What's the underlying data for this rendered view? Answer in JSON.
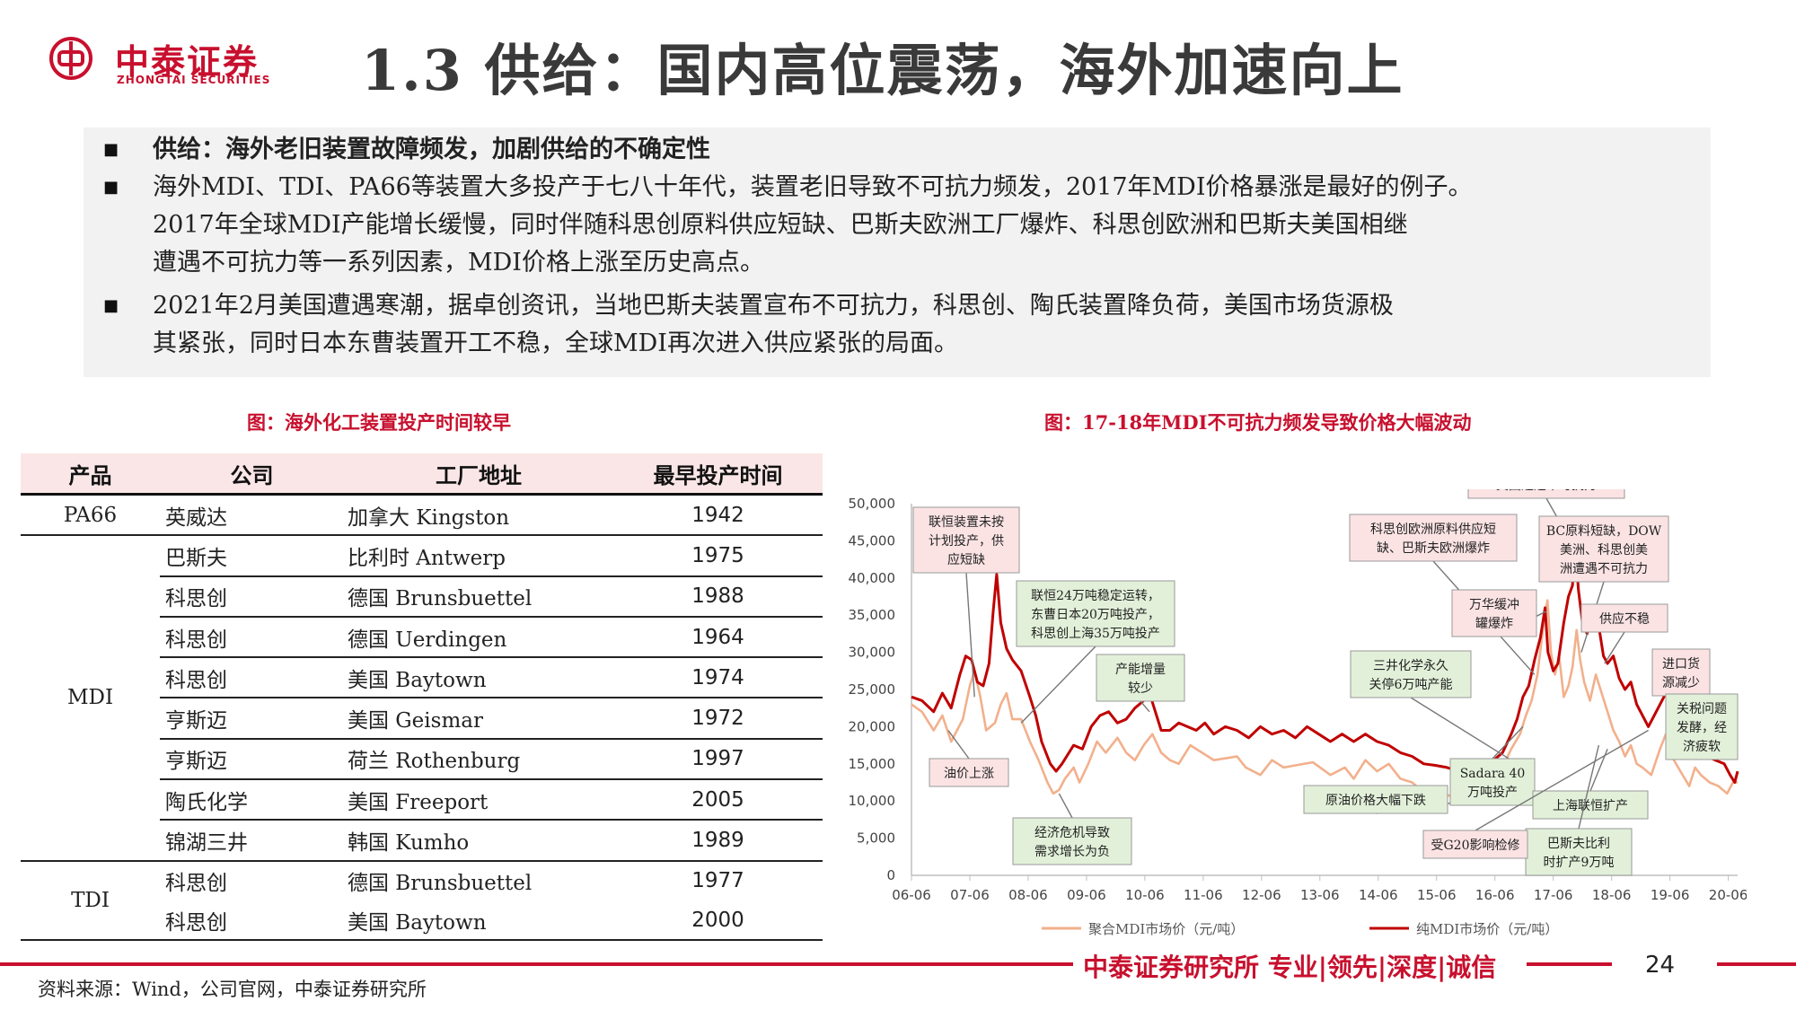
{
  "header": {
    "logo_cn": "中泰证券",
    "logo_en": "ZHONGTAI SECURITIES",
    "title": "1.3 供给：国内高位震荡，海外加速向上"
  },
  "summary": {
    "bullet_glyph": "■",
    "heading": "供给：海外老旧装置故障频发，加剧供给的不确定性",
    "para1_lines": [
      "海外MDI、TDI、PA66等装置大多投产于七八十年代，装置老旧导致不可抗力频发，2017年MDI价格暴涨是最好的例子。",
      "2017年全球MDI产能增长缓慢，同时伴随科思创原料供应短缺、巴斯夫欧洲工厂爆炸、科思创欧洲和巴斯夫美国相继",
      "遭遇不可抗力等一系列因素，MDI价格上涨至历史高点。"
    ],
    "para2_lines": [
      "2021年2月美国遭遇寒潮，据卓创资讯，当地巴斯夫装置宣布不可抗力，科思创、陶氏装置降负荷，美国市场货源极",
      "其紧张，同时日本东曹装置开工不稳，全球MDI再次进入供应紧张的局面。"
    ]
  },
  "table": {
    "caption": "图：海外化工装置投产时间较早",
    "headers": [
      "产品",
      "公司",
      "工厂地址",
      "最早投产时间"
    ],
    "groups": [
      "PA66",
      "MDI",
      "TDI"
    ],
    "rows": [
      {
        "company": "英威达",
        "site": "加拿大 Kingston",
        "year": "1942"
      },
      {
        "company": "巴斯夫",
        "site": "比利时 Antwerp",
        "year": "1975"
      },
      {
        "company": "科思创",
        "site": "德国 Brunsbuettel",
        "year": "1988"
      },
      {
        "company": "科思创",
        "site": "德国 Uerdingen",
        "year": "1964"
      },
      {
        "company": "科思创",
        "site": "美国 Baytown",
        "year": "1974"
      },
      {
        "company": "亨斯迈",
        "site": "美国 Geismar",
        "year": "1972"
      },
      {
        "company": "亨斯迈",
        "site": "荷兰 Rothenburg",
        "year": "1997"
      },
      {
        "company": "陶氏化学",
        "site": "美国 Freeport",
        "year": "2005"
      },
      {
        "company": "锦湖三井",
        "site": "韩国 Kumho",
        "year": "1989"
      },
      {
        "company": "科思创",
        "site": "德国 Brunsbuettel",
        "year": "1977"
      },
      {
        "company": "科思创",
        "site": "美国 Baytown",
        "year": "2000"
      }
    ]
  },
  "chart_data": {
    "type": "line",
    "caption": "图：17-18年MDI不可抗力频发导致价格大幅波动",
    "ylim": [
      0,
      50000
    ],
    "yticks": [
      "0",
      "5,000",
      "10,000",
      "15,000",
      "20,000",
      "25,000",
      "30,000",
      "35,000",
      "40,000",
      "45,000",
      "50,000"
    ],
    "x_tick_labels": [
      "06-06",
      "07-06",
      "08-06",
      "09-06",
      "10-06",
      "11-06",
      "12-06",
      "13-06",
      "14-06",
      "15-06",
      "16-06",
      "17-06",
      "18-06",
      "19-06",
      "20-06"
    ],
    "x_range": [
      2006.42,
      2020.58
    ],
    "grid": false,
    "legend_position": "bottom",
    "series": [
      {
        "name": "聚合MDI市场价（元/吨）",
        "color": "#f2b08c",
        "points": [
          [
            2006.42,
            23000
          ],
          [
            2006.6,
            22000
          ],
          [
            2006.8,
            19500
          ],
          [
            2006.95,
            21500
          ],
          [
            2007.1,
            18000
          ],
          [
            2007.3,
            21000
          ],
          [
            2007.42,
            25500
          ],
          [
            2007.5,
            27500
          ],
          [
            2007.6,
            24000
          ],
          [
            2007.7,
            19500
          ],
          [
            2007.85,
            20500
          ],
          [
            2007.95,
            23000
          ],
          [
            2008.05,
            24500
          ],
          [
            2008.15,
            21000
          ],
          [
            2008.3,
            21000
          ],
          [
            2008.45,
            18000
          ],
          [
            2008.6,
            15500
          ],
          [
            2008.75,
            12500
          ],
          [
            2008.85,
            11000
          ],
          [
            2008.95,
            11500
          ],
          [
            2009.05,
            13000
          ],
          [
            2009.2,
            14500
          ],
          [
            2009.3,
            12500
          ],
          [
            2009.45,
            15000
          ],
          [
            2009.6,
            18000
          ],
          [
            2009.75,
            16500
          ],
          [
            2009.95,
            18500
          ],
          [
            2010.1,
            16500
          ],
          [
            2010.25,
            15500
          ],
          [
            2010.4,
            17500
          ],
          [
            2010.55,
            19000
          ],
          [
            2010.7,
            16500
          ],
          [
            2010.85,
            15500
          ],
          [
            2011.0,
            15000
          ],
          [
            2011.2,
            17500
          ],
          [
            2011.4,
            16500
          ],
          [
            2011.6,
            15500
          ],
          [
            2011.85,
            15800
          ],
          [
            2012.0,
            16000
          ],
          [
            2012.15,
            14500
          ],
          [
            2012.4,
            13500
          ],
          [
            2012.6,
            15500
          ],
          [
            2012.8,
            14500
          ],
          [
            2013.0,
            14800
          ],
          [
            2013.3,
            15200
          ],
          [
            2013.6,
            13500
          ],
          [
            2013.85,
            14500
          ],
          [
            2014.0,
            13000
          ],
          [
            2014.2,
            15500
          ],
          [
            2014.4,
            14000
          ],
          [
            2014.6,
            15000
          ],
          [
            2014.8,
            13000
          ],
          [
            2015.0,
            12500
          ],
          [
            2015.15,
            11500
          ],
          [
            2015.3,
            12000
          ],
          [
            2015.5,
            11200
          ],
          [
            2015.7,
            10500
          ],
          [
            2015.8,
            9700
          ],
          [
            2015.95,
            10800
          ],
          [
            2016.1,
            11500
          ],
          [
            2016.25,
            12500
          ],
          [
            2016.4,
            13500
          ],
          [
            2016.55,
            14500
          ],
          [
            2016.7,
            17000
          ],
          [
            2016.85,
            19000
          ],
          [
            2016.95,
            21500
          ],
          [
            2017.05,
            23500
          ],
          [
            2017.15,
            27000
          ],
          [
            2017.25,
            33500
          ],
          [
            2017.32,
            37000
          ],
          [
            2017.38,
            30000
          ],
          [
            2017.45,
            27000
          ],
          [
            2017.52,
            29500
          ],
          [
            2017.6,
            24000
          ],
          [
            2017.68,
            25500
          ],
          [
            2017.75,
            28000
          ],
          [
            2017.82,
            33000
          ],
          [
            2017.88,
            29000
          ],
          [
            2017.95,
            26000
          ],
          [
            2018.05,
            23500
          ],
          [
            2018.15,
            27000
          ],
          [
            2018.25,
            24500
          ],
          [
            2018.35,
            22000
          ],
          [
            2018.45,
            19500
          ],
          [
            2018.55,
            18000
          ],
          [
            2018.65,
            16000
          ],
          [
            2018.75,
            17500
          ],
          [
            2018.85,
            15000
          ],
          [
            2018.95,
            14500
          ],
          [
            2019.1,
            13500
          ],
          [
            2019.25,
            17000
          ],
          [
            2019.35,
            19000
          ],
          [
            2019.45,
            16000
          ],
          [
            2019.6,
            14000
          ],
          [
            2019.75,
            12000
          ],
          [
            2019.85,
            14500
          ],
          [
            2019.95,
            13500
          ],
          [
            2020.1,
            12500
          ],
          [
            2020.25,
            12000
          ],
          [
            2020.4,
            11000
          ],
          [
            2020.5,
            12500
          ],
          [
            2020.58,
            12500
          ]
        ]
      },
      {
        "name": "纯MDI市场价（元/吨）",
        "color": "#c00000",
        "points": [
          [
            2006.42,
            24000
          ],
          [
            2006.6,
            23500
          ],
          [
            2006.8,
            22000
          ],
          [
            2006.95,
            24500
          ],
          [
            2007.1,
            22500
          ],
          [
            2007.25,
            27000
          ],
          [
            2007.35,
            29500
          ],
          [
            2007.45,
            29000
          ],
          [
            2007.55,
            26000
          ],
          [
            2007.65,
            25500
          ],
          [
            2007.75,
            28500
          ],
          [
            2007.82,
            35500
          ],
          [
            2007.88,
            40500
          ],
          [
            2007.95,
            34000
          ],
          [
            2008.05,
            30500
          ],
          [
            2008.15,
            29000
          ],
          [
            2008.3,
            27500
          ],
          [
            2008.45,
            24000
          ],
          [
            2008.55,
            21500
          ],
          [
            2008.65,
            18000
          ],
          [
            2008.8,
            15000
          ],
          [
            2008.9,
            14000
          ],
          [
            2009.0,
            15000
          ],
          [
            2009.2,
            17500
          ],
          [
            2009.35,
            17000
          ],
          [
            2009.5,
            20000
          ],
          [
            2009.65,
            21500
          ],
          [
            2009.8,
            22000
          ],
          [
            2009.95,
            20500
          ],
          [
            2010.1,
            21000
          ],
          [
            2010.25,
            22500
          ],
          [
            2010.4,
            23500
          ],
          [
            2010.5,
            24500
          ],
          [
            2010.6,
            22000
          ],
          [
            2010.7,
            19500
          ],
          [
            2010.85,
            19500
          ],
          [
            2011.0,
            20500
          ],
          [
            2011.15,
            20000
          ],
          [
            2011.3,
            19500
          ],
          [
            2011.45,
            20500
          ],
          [
            2011.6,
            19000
          ],
          [
            2011.8,
            20000
          ],
          [
            2012.0,
            19500
          ],
          [
            2012.2,
            18500
          ],
          [
            2012.4,
            20000
          ],
          [
            2012.6,
            19000
          ],
          [
            2012.8,
            19500
          ],
          [
            2013.0,
            18500
          ],
          [
            2013.2,
            20000
          ],
          [
            2013.4,
            19000
          ],
          [
            2013.6,
            18000
          ],
          [
            2013.8,
            19000
          ],
          [
            2014.0,
            18000
          ],
          [
            2014.2,
            19000
          ],
          [
            2014.4,
            18000
          ],
          [
            2014.6,
            17500
          ],
          [
            2014.8,
            16500
          ],
          [
            2015.0,
            16000
          ],
          [
            2015.2,
            15000
          ],
          [
            2015.4,
            14800
          ],
          [
            2015.6,
            14500
          ],
          [
            2015.8,
            14000
          ],
          [
            2016.0,
            14500
          ],
          [
            2016.2,
            15000
          ],
          [
            2016.4,
            15500
          ],
          [
            2016.55,
            16500
          ],
          [
            2016.7,
            19000
          ],
          [
            2016.8,
            21000
          ],
          [
            2016.9,
            24000
          ],
          [
            2017.0,
            25500
          ],
          [
            2017.1,
            29000
          ],
          [
            2017.2,
            32000
          ],
          [
            2017.28,
            36000
          ],
          [
            2017.33,
            30000
          ],
          [
            2017.42,
            27500
          ],
          [
            2017.5,
            28500
          ],
          [
            2017.6,
            34000
          ],
          [
            2017.68,
            37500
          ],
          [
            2017.75,
            39000
          ],
          [
            2017.8,
            44500
          ],
          [
            2017.85,
            38500
          ],
          [
            2017.92,
            34000
          ],
          [
            2018.0,
            32500
          ],
          [
            2018.1,
            36000
          ],
          [
            2018.2,
            33500
          ],
          [
            2018.28,
            29500
          ],
          [
            2018.35,
            28500
          ],
          [
            2018.45,
            29500
          ],
          [
            2018.55,
            26500
          ],
          [
            2018.65,
            25000
          ],
          [
            2018.75,
            26000
          ],
          [
            2018.85,
            23000
          ],
          [
            2018.95,
            21500
          ],
          [
            2019.05,
            20000
          ],
          [
            2019.15,
            21500
          ],
          [
            2019.25,
            23000
          ],
          [
            2019.35,
            24500
          ],
          [
            2019.45,
            21500
          ],
          [
            2019.55,
            20000
          ],
          [
            2019.65,
            18000
          ],
          [
            2019.75,
            19000
          ],
          [
            2019.85,
            16500
          ],
          [
            2019.95,
            17500
          ],
          [
            2020.05,
            16000
          ],
          [
            2020.2,
            15500
          ],
          [
            2020.35,
            15000
          ],
          [
            2020.45,
            13500
          ],
          [
            2020.53,
            12500
          ],
          [
            2020.58,
            14000
          ]
        ]
      }
    ],
    "annotations": [
      {
        "lines": [
          "联恒装置未按",
          "计划投产，供",
          "应短缺"
        ],
        "kind": "red"
      },
      {
        "lines": [
          "联恒24万吨稳定运转，",
          "东曹日本20万吨投产，",
          "科思创上海35万吨投产"
        ],
        "kind": "green"
      },
      {
        "lines": [
          "产能增量",
          "较少"
        ],
        "kind": "green"
      },
      {
        "lines": [
          "油价上涨"
        ],
        "kind": "red"
      },
      {
        "lines": [
          "经济危机导致",
          "需求增长为负"
        ],
        "kind": "green"
      },
      {
        "lines": [
          "原油价格大幅下跌"
        ],
        "kind": "green"
      },
      {
        "lines": [
          "科思创欧洲原料供应短",
          "缺、巴斯夫欧洲爆炸"
        ],
        "kind": "red"
      },
      {
        "lines": [
          "科思创欧洲、巴斯夫",
          "美国遭遇不可抗力"
        ],
        "kind": "red"
      },
      {
        "lines": [
          "三井化学永久",
          "关停6万吨产能"
        ],
        "kind": "green"
      },
      {
        "lines": [
          "万华缓冲",
          "罐爆炸"
        ],
        "kind": "red"
      },
      {
        "lines": [
          "Sadara 40",
          "万吨投产"
        ],
        "kind": "green"
      },
      {
        "lines": [
          "BC原料短缺，DOW",
          "美洲、科思创美",
          "洲遭遇不可抗力"
        ],
        "kind": "red"
      },
      {
        "lines": [
          "供应不稳"
        ],
        "kind": "red"
      },
      {
        "lines": [
          "上海联恒扩产"
        ],
        "kind": "green"
      },
      {
        "lines": [
          "巴斯夫比利",
          "时扩产9万吨"
        ],
        "kind": "green"
      },
      {
        "lines": [
          "进口货",
          "源减少"
        ],
        "kind": "red"
      },
      {
        "lines": [
          "关税问题",
          "发酵，经",
          "济疲软"
        ],
        "kind": "green"
      },
      {
        "lines": [
          "受G20影响检修"
        ],
        "kind": "red"
      }
    ]
  },
  "footer": {
    "brand": "中泰证券研究所 专业|领先|深度|诚信",
    "page_number": "24",
    "source": "资料来源：Wind，公司官网，中泰证券研究所"
  },
  "colors": {
    "brand_red": "#c8102e",
    "box_bg": "#f2f2f2",
    "table_header_bg": "#fae6e6",
    "annotation_red_bg": "#fbe3e4",
    "annotation_green_bg": "#e2f0d9"
  }
}
